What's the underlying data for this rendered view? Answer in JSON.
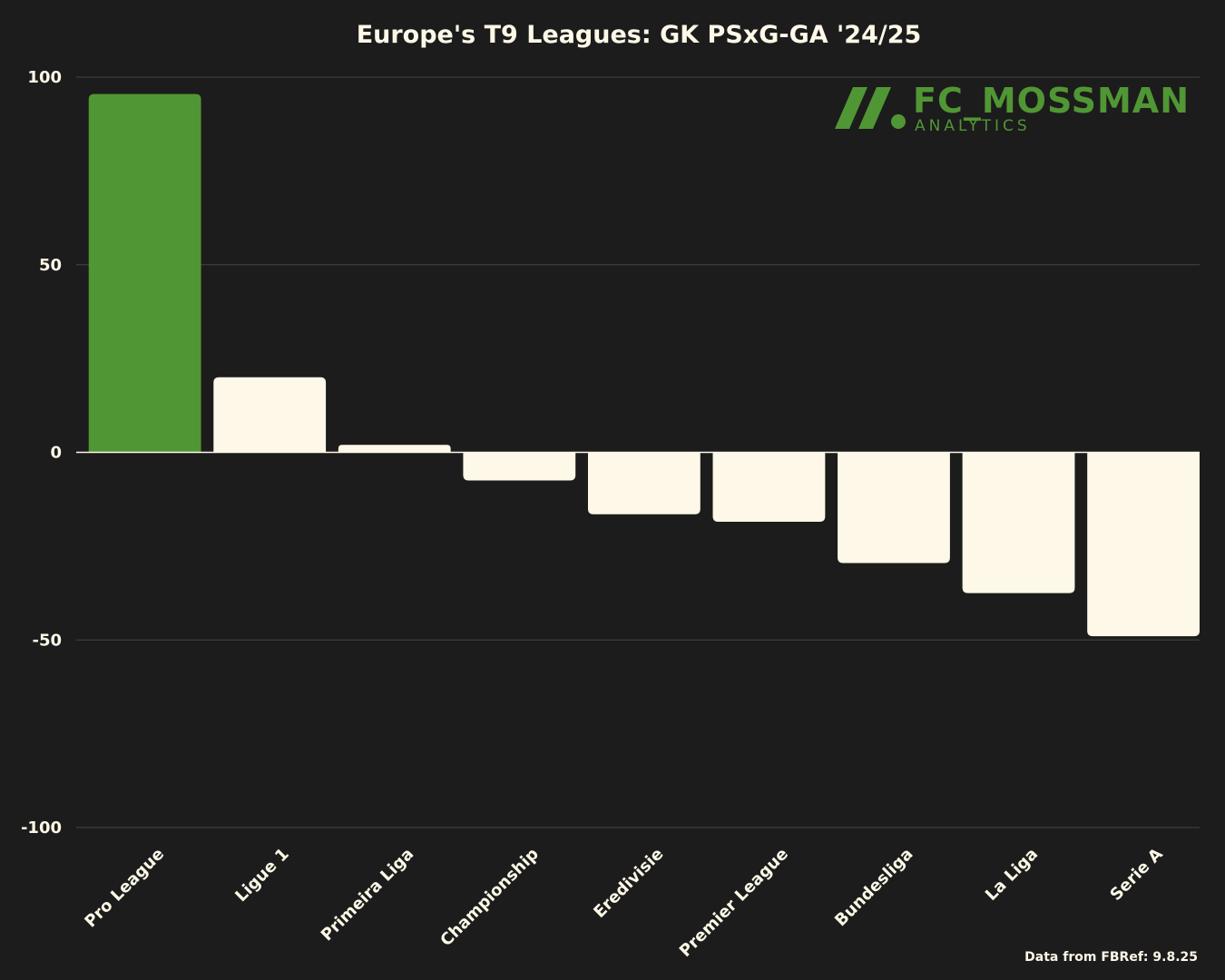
{
  "chart_data": {
    "type": "bar",
    "title": "Europe's T9 Leagues: GK PSxG-GA '24/25",
    "xlabel": "",
    "ylabel": "",
    "ylim": [
      -100,
      100
    ],
    "yticks": [
      100,
      50,
      0,
      -50,
      -100
    ],
    "grid": true,
    "categories": [
      "Pro League",
      "Ligue 1",
      "Primeira Liga",
      "Championship",
      "Eredivisie",
      "Premier League",
      "Bundesliga",
      "La Liga",
      "Serie A"
    ],
    "values": [
      95.5,
      20,
      2,
      -7.5,
      -16.5,
      -18.5,
      -29.5,
      -37.5,
      -49
    ],
    "highlight_index": 0
  },
  "colors": {
    "background": "#1c1c1c",
    "highlight_bar": "#519634",
    "default_bar": "#fdf8e7",
    "grid": "#444444",
    "text": "#fdf8e7",
    "brand": "#519634"
  },
  "brand": {
    "name": "FC_MOSSMAN",
    "tagline": "ANALYTICS"
  },
  "source_note": "Data from FBRef: 9.8.25"
}
